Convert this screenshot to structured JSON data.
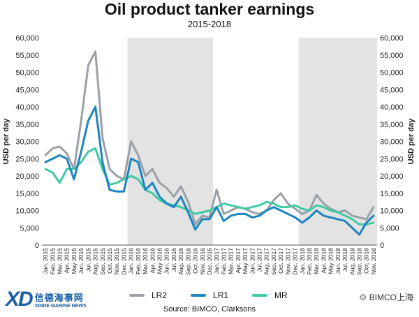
{
  "title": "Oil product tanker earnings",
  "subtitle": "2015-2018",
  "source": "Source: BIMCO, Clarksons",
  "logo": {
    "cn": "信德海事网",
    "en": "XINDE MARINE NEWS",
    "mark": "XD"
  },
  "watermark": "BIMCO上海",
  "colors": {
    "LR2": "#9aa0a6",
    "LR1": "#1b84c0",
    "MR": "#40c9a2",
    "shade": "#e3e3e3"
  },
  "chart_data": {
    "type": "line",
    "title": "Oil product tanker earnings",
    "subtitle": "2015-2018",
    "ylabel": "USD per day",
    "ylabel_right": "USD per day",
    "ylim": [
      0,
      60000
    ],
    "yticks": [
      "0",
      "5,000",
      "10,000",
      "15,000",
      "20,000",
      "25,000",
      "30,000",
      "35,000",
      "40,000",
      "45,000",
      "50,000",
      "55,000",
      "60,000"
    ],
    "x": [
      "Jan. 2015",
      "Feb. 2015",
      "Mar. 2015",
      "Apr. 2015",
      "May 2015",
      "Jun. 2015",
      "Jul. 2015",
      "Aug. 2015",
      "Sep. 2015",
      "Oct. 2015",
      "Nov. 2015",
      "Dec. 2015",
      "Jan. 2016",
      "Feb. 2016",
      "Mar. 2016",
      "Apr. 2016",
      "May 2016",
      "Jun. 2016",
      "Jul. 2016",
      "Aug. 2016",
      "Sep. 2016",
      "Oct. 2016",
      "Nov. 2016",
      "Dec. 2016",
      "Jan. 2017",
      "Feb. 2017",
      "Mar. 2017",
      "Apr. 2017",
      "May 2017",
      "Jun. 2017",
      "Jul. 2017",
      "Aug. 2017",
      "Sep. 2017",
      "Oct. 2017",
      "Nov. 2017",
      "Dec. 2017",
      "Jan. 2018",
      "Feb. 2018",
      "Mar. 2018",
      "Apr. 2018",
      "May 2018",
      "Jun. 2018",
      "Jul. 2018",
      "Aug. 2018",
      "Sep. 2018",
      "Oct. 2018",
      "Nov. 2018"
    ],
    "shaded_periods": [
      [
        "Jan. 2016",
        "Dec. 2016"
      ],
      [
        "Jan. 2018",
        "Nov. 2018"
      ]
    ],
    "grid": false,
    "legend": "bottom",
    "series": [
      {
        "name": "LR2",
        "values": [
          26000,
          28000,
          28500,
          26500,
          22000,
          36000,
          52000,
          56000,
          31000,
          22000,
          20000,
          19000,
          30000,
          26000,
          20000,
          22000,
          18000,
          16500,
          14000,
          17000,
          12500,
          6000,
          8500,
          8000,
          16000,
          9000,
          10000,
          11000,
          10500,
          9500,
          9000,
          10000,
          13000,
          15000,
          12000,
          10500,
          9000,
          10000,
          14500,
          12000,
          10500,
          9500,
          10000,
          8500,
          8000,
          7500,
          11000
        ]
      },
      {
        "name": "LR1",
        "values": [
          24000,
          25000,
          26000,
          25000,
          19000,
          27000,
          36000,
          40000,
          24000,
          16000,
          15500,
          15500,
          25000,
          24000,
          16000,
          18000,
          14000,
          12000,
          11000,
          14000,
          9500,
          4500,
          7500,
          7500,
          11000,
          7000,
          8500,
          9000,
          9000,
          8000,
          8500,
          10000,
          11000,
          10000,
          9000,
          8000,
          6500,
          8000,
          10000,
          8500,
          8000,
          7500,
          7000,
          5000,
          3000,
          6500,
          8500
        ]
      },
      {
        "name": "MR",
        "values": [
          22000,
          21000,
          18000,
          22000,
          22000,
          24000,
          27000,
          28000,
          22000,
          17500,
          18000,
          19000,
          20000,
          19000,
          16000,
          15000,
          13000,
          12000,
          11500,
          11000,
          10000,
          9000,
          9500,
          10000,
          11000,
          12000,
          11500,
          11000,
          10500,
          11000,
          11500,
          12500,
          12000,
          11000,
          11000,
          11500,
          10500,
          10000,
          11500,
          11000,
          10000,
          9500,
          8500,
          7500,
          6000,
          6000,
          6500
        ]
      }
    ]
  },
  "legend": [
    {
      "key": "LR2",
      "label": "LR2"
    },
    {
      "key": "LR1",
      "label": "LR1"
    },
    {
      "key": "MR",
      "label": "MR"
    }
  ]
}
